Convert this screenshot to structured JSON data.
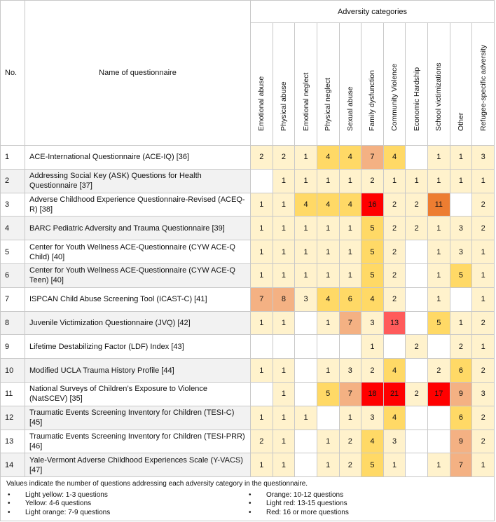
{
  "header": {
    "no_label": "No.",
    "name_label": "Name of questionnaire",
    "group_label": "Adversity categories",
    "categories": [
      "Emotional abuse",
      "Physical abuse",
      "Emotional neglect",
      "Physical neglect",
      "Sexual abuse",
      "Family dysfunction",
      "Community Violence",
      "Economic Hardship",
      "School victimizations",
      "Other",
      "Refugee-specific adversity"
    ]
  },
  "rows": [
    {
      "no": "1",
      "name": "ACE-International Questionnaire (ACE-IQ) [36]",
      "values": [
        2,
        2,
        1,
        4,
        4,
        7,
        4,
        null,
        1,
        1,
        3
      ]
    },
    {
      "no": "2",
      "name": "Addressing Social Key (ASK) Questions for Health Questionnaire [37]",
      "values": [
        null,
        1,
        1,
        1,
        1,
        2,
        1,
        1,
        1,
        1,
        1
      ]
    },
    {
      "no": "3",
      "name": "Adverse Childhood Experience Questionnaire-Revised (ACEQ-R) [38]",
      "values": [
        1,
        1,
        4,
        4,
        4,
        16,
        2,
        2,
        11,
        null,
        2
      ]
    },
    {
      "no": "4",
      "name": "BARC Pediatric Adversity and Trauma Questionnaire [39]",
      "values": [
        1,
        1,
        1,
        1,
        1,
        5,
        2,
        2,
        1,
        3,
        2
      ]
    },
    {
      "no": "5",
      "name": "Center for Youth Wellness ACE-Questionnaire (CYW ACE-Q Child) [40]",
      "values": [
        1,
        1,
        1,
        1,
        1,
        5,
        2,
        null,
        1,
        3,
        1
      ]
    },
    {
      "no": "6",
      "name": "Center for Youth Wellness ACE-Questionnaire (CYW ACE-Q Teen) [40]",
      "values": [
        1,
        1,
        1,
        1,
        1,
        5,
        2,
        null,
        1,
        5,
        1
      ]
    },
    {
      "no": "7",
      "name": "ISPCAN Child Abuse Screening Tool (ICAST-C) [41]",
      "values": [
        7,
        8,
        3,
        4,
        6,
        4,
        2,
        null,
        1,
        null,
        1
      ]
    },
    {
      "no": "8",
      "name": "Juvenile Victimization Questionnaire (JVQ) [42]",
      "values": [
        1,
        1,
        null,
        1,
        7,
        3,
        13,
        null,
        5,
        1,
        2
      ]
    },
    {
      "no": "9",
      "name": "Lifetime Destabilizing Factor (LDF) Index [43]",
      "values": [
        null,
        null,
        null,
        null,
        null,
        1,
        null,
        2,
        null,
        2,
        1
      ]
    },
    {
      "no": "10",
      "name": "Modified UCLA Trauma History Profile [44]",
      "values": [
        1,
        1,
        null,
        1,
        3,
        2,
        4,
        null,
        2,
        6,
        2
      ]
    },
    {
      "no": "11",
      "name": "National Surveys of Children’s Exposure to Violence (NatSCEV) [35]",
      "values": [
        null,
        1,
        null,
        5,
        7,
        18,
        21,
        2,
        17,
        9,
        3
      ]
    },
    {
      "no": "12",
      "name": "Traumatic Events Screening Inventory for Children (TESI-C) [45]",
      "values": [
        1,
        1,
        1,
        null,
        1,
        3,
        4,
        null,
        null,
        6,
        2
      ]
    },
    {
      "no": "13",
      "name": "Traumatic Events Screening Inventory for Children (TESI-PRR) [46]",
      "values": [
        2,
        1,
        null,
        1,
        2,
        4,
        3,
        null,
        null,
        9,
        2
      ]
    },
    {
      "no": "14",
      "name": "Yale-Vermont Adverse Childhood Experiences Scale (Y-VACS) [47]",
      "values": [
        1,
        1,
        null,
        1,
        2,
        5,
        1,
        null,
        1,
        7,
        1
      ]
    }
  ],
  "legend": {
    "note": "Values indicate the number of questions addressing each adversity category in the questionnaire.",
    "items": [
      {
        "label": "Light yellow: 1-3 questions",
        "min": 1,
        "max": 3,
        "color": "#fff2cc"
      },
      {
        "label": "Yellow: 4-6 questions",
        "min": 4,
        "max": 6,
        "color": "#ffd966"
      },
      {
        "label": "Light orange: 7-9 questions",
        "min": 7,
        "max": 9,
        "color": "#f4b183"
      },
      {
        "label": "Orange: 10-12 questions",
        "min": 10,
        "max": 12,
        "color": "#ed7d31"
      },
      {
        "label": "Light red: 13-15 questions",
        "min": 13,
        "max": 15,
        "color": "#ff5b5b"
      },
      {
        "label": "Red: 16 or more questions",
        "min": 16,
        "max": 999,
        "color": "#ff0000"
      }
    ]
  }
}
